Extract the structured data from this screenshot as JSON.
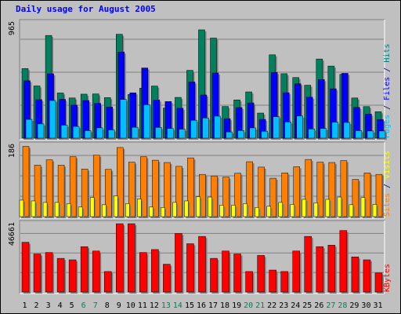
{
  "chart_data": {
    "type": "bar",
    "title": "Daily usage for August 2005",
    "categories": [
      "1",
      "2",
      "3",
      "4",
      "5",
      "6",
      "7",
      "8",
      "9",
      "10",
      "11",
      "12",
      "13",
      "14",
      "15",
      "16",
      "17",
      "18",
      "19",
      "20",
      "21",
      "22",
      "23",
      "24",
      "25",
      "26",
      "27",
      "28",
      "29",
      "30",
      "31"
    ],
    "weekend_days": [
      "6",
      "7",
      "13",
      "14",
      "20",
      "21",
      "27",
      "28"
    ],
    "panels": [
      {
        "id": "top",
        "ymax": 965,
        "ymax_label": "965",
        "legend": [
          {
            "text": "Pages",
            "color": "#00c0ff"
          },
          {
            "text": " / ",
            "color": "#000080"
          },
          {
            "text": "Files",
            "color": "#0000ff"
          },
          {
            "text": " / ",
            "color": "#000080"
          },
          {
            "text": "Hits",
            "color": "#008080"
          }
        ],
        "series": [
          {
            "name": "Hits",
            "color": "#00805c",
            "values": [
              582,
              437,
              859,
              378,
              336,
              368,
              370,
              339,
              869,
              365,
              418,
              436,
              252,
              341,
              567,
              906,
              837,
              265,
              320,
              387,
              210,
              697,
              539,
              507,
              443,
              662,
              603,
              534,
              336,
              264,
              221
            ]
          },
          {
            "name": "Files",
            "color": "#0000ff",
            "values": [
              480,
              322,
              538,
              325,
              276,
              315,
              291,
              260,
              721,
              379,
              587,
              319,
              306,
              250,
              470,
              361,
              545,
              163,
              256,
              295,
              157,
              550,
              380,
              455,
              342,
              490,
              413,
              542,
              257,
              201,
              155
            ]
          },
          {
            "name": "Pages",
            "color": "#00bfff",
            "values": [
              157,
              119,
              315,
              109,
              98,
              63,
              86,
              69,
              324,
              91,
              280,
              90,
              81,
              75,
              150,
              169,
              184,
              52,
              64,
              86,
              58,
              180,
              136,
              185,
              77,
              81,
              133,
              131,
              63,
              60,
              60
            ]
          }
        ]
      },
      {
        "id": "middle",
        "ymax": 186,
        "ymax_label": "186",
        "legend": [
          {
            "text": "Sites",
            "color": "#ff8000"
          },
          {
            "text": " / ",
            "color": "#000080"
          },
          {
            "text": "Visits",
            "color": "#ffff00"
          }
        ],
        "series": [
          {
            "name": "Sites",
            "color": "#ff8000",
            "values": [
              183,
              134,
              148,
              134,
              156,
              124,
              160,
              123,
              180,
              142,
              156,
              147,
              141,
              131,
              153,
              110,
              106,
              103,
              113,
              143,
              129,
              100,
              114,
              130,
              149,
              142,
              141,
              146,
              97,
              114,
              110
            ]
          },
          {
            "name": "Visits",
            "color": "#ffff00",
            "values": [
              43,
              41,
              37,
              37,
              34,
              25,
              50,
              31,
              54,
              34,
              46,
              25,
              24,
              37,
              41,
              52,
              51,
              30,
              30,
              34,
              24,
              27,
              37,
              32,
              45,
              36,
              45,
              51,
              31,
              50,
              32
            ]
          }
        ]
      },
      {
        "id": "bottom",
        "ymax": 46661,
        "ymax_label": "46661",
        "legend": [
          {
            "text": "KBytes",
            "color": "#ff0000"
          }
        ],
        "series": [
          {
            "name": "KBytes",
            "color": "#ff0000",
            "values": [
              34000,
              26000,
              27000,
              23000,
              22000,
              31000,
              28000,
              14000,
              46661,
              46661,
              27000,
              29000,
              19000,
              40000,
              33000,
              38000,
              23000,
              28000,
              26000,
              14000,
              25000,
              15000,
              14000,
              28000,
              38000,
              31000,
              32000,
              42000,
              24000,
              22000,
              13000
            ]
          }
        ]
      }
    ]
  }
}
